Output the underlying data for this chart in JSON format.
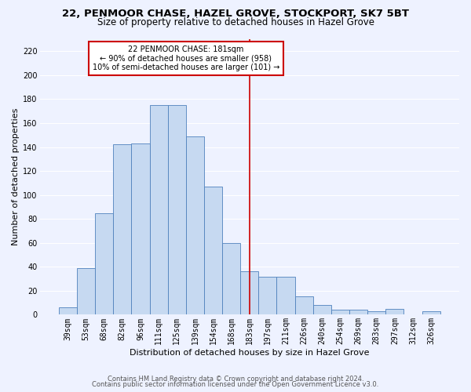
{
  "title": "22, PENMOOR CHASE, HAZEL GROVE, STOCKPORT, SK7 5BT",
  "subtitle": "Size of property relative to detached houses in Hazel Grove",
  "xlabel": "Distribution of detached houses by size in Hazel Grove",
  "ylabel": "Number of detached properties",
  "footnote1": "Contains HM Land Registry data © Crown copyright and database right 2024.",
  "footnote2": "Contains public sector information licensed under the Open Government Licence v3.0.",
  "categories": [
    "39sqm",
    "53sqm",
    "68sqm",
    "82sqm",
    "96sqm",
    "111sqm",
    "125sqm",
    "139sqm",
    "154sqm",
    "168sqm",
    "183sqm",
    "197sqm",
    "211sqm",
    "226sqm",
    "240sqm",
    "254sqm",
    "269sqm",
    "283sqm",
    "297sqm",
    "312sqm",
    "326sqm"
  ],
  "values": [
    6,
    39,
    85,
    142,
    143,
    175,
    175,
    149,
    107,
    60,
    36,
    32,
    32,
    15,
    8,
    4,
    4,
    3,
    5,
    0,
    3
  ],
  "bar_color": "#c6d9f1",
  "bar_edge_color": "#4f81bd",
  "vline_index": 10,
  "vline_color": "#cc0000",
  "annotation_text": "22 PENMOOR CHASE: 181sqm\n← 90% of detached houses are smaller (958)\n10% of semi-detached houses are larger (101) →",
  "annotation_box_color": "#cc0000",
  "annotation_fill": "white",
  "ylim": [
    0,
    230
  ],
  "yticks": [
    0,
    20,
    40,
    60,
    80,
    100,
    120,
    140,
    160,
    180,
    200,
    220
  ],
  "bg_color": "#eef2ff",
  "grid_color": "#ffffff",
  "title_fontsize": 9.5,
  "subtitle_fontsize": 8.5,
  "xlabel_fontsize": 8,
  "ylabel_fontsize": 8,
  "tick_fontsize": 7,
  "annotation_fontsize": 7,
  "footnote_fontsize": 6
}
